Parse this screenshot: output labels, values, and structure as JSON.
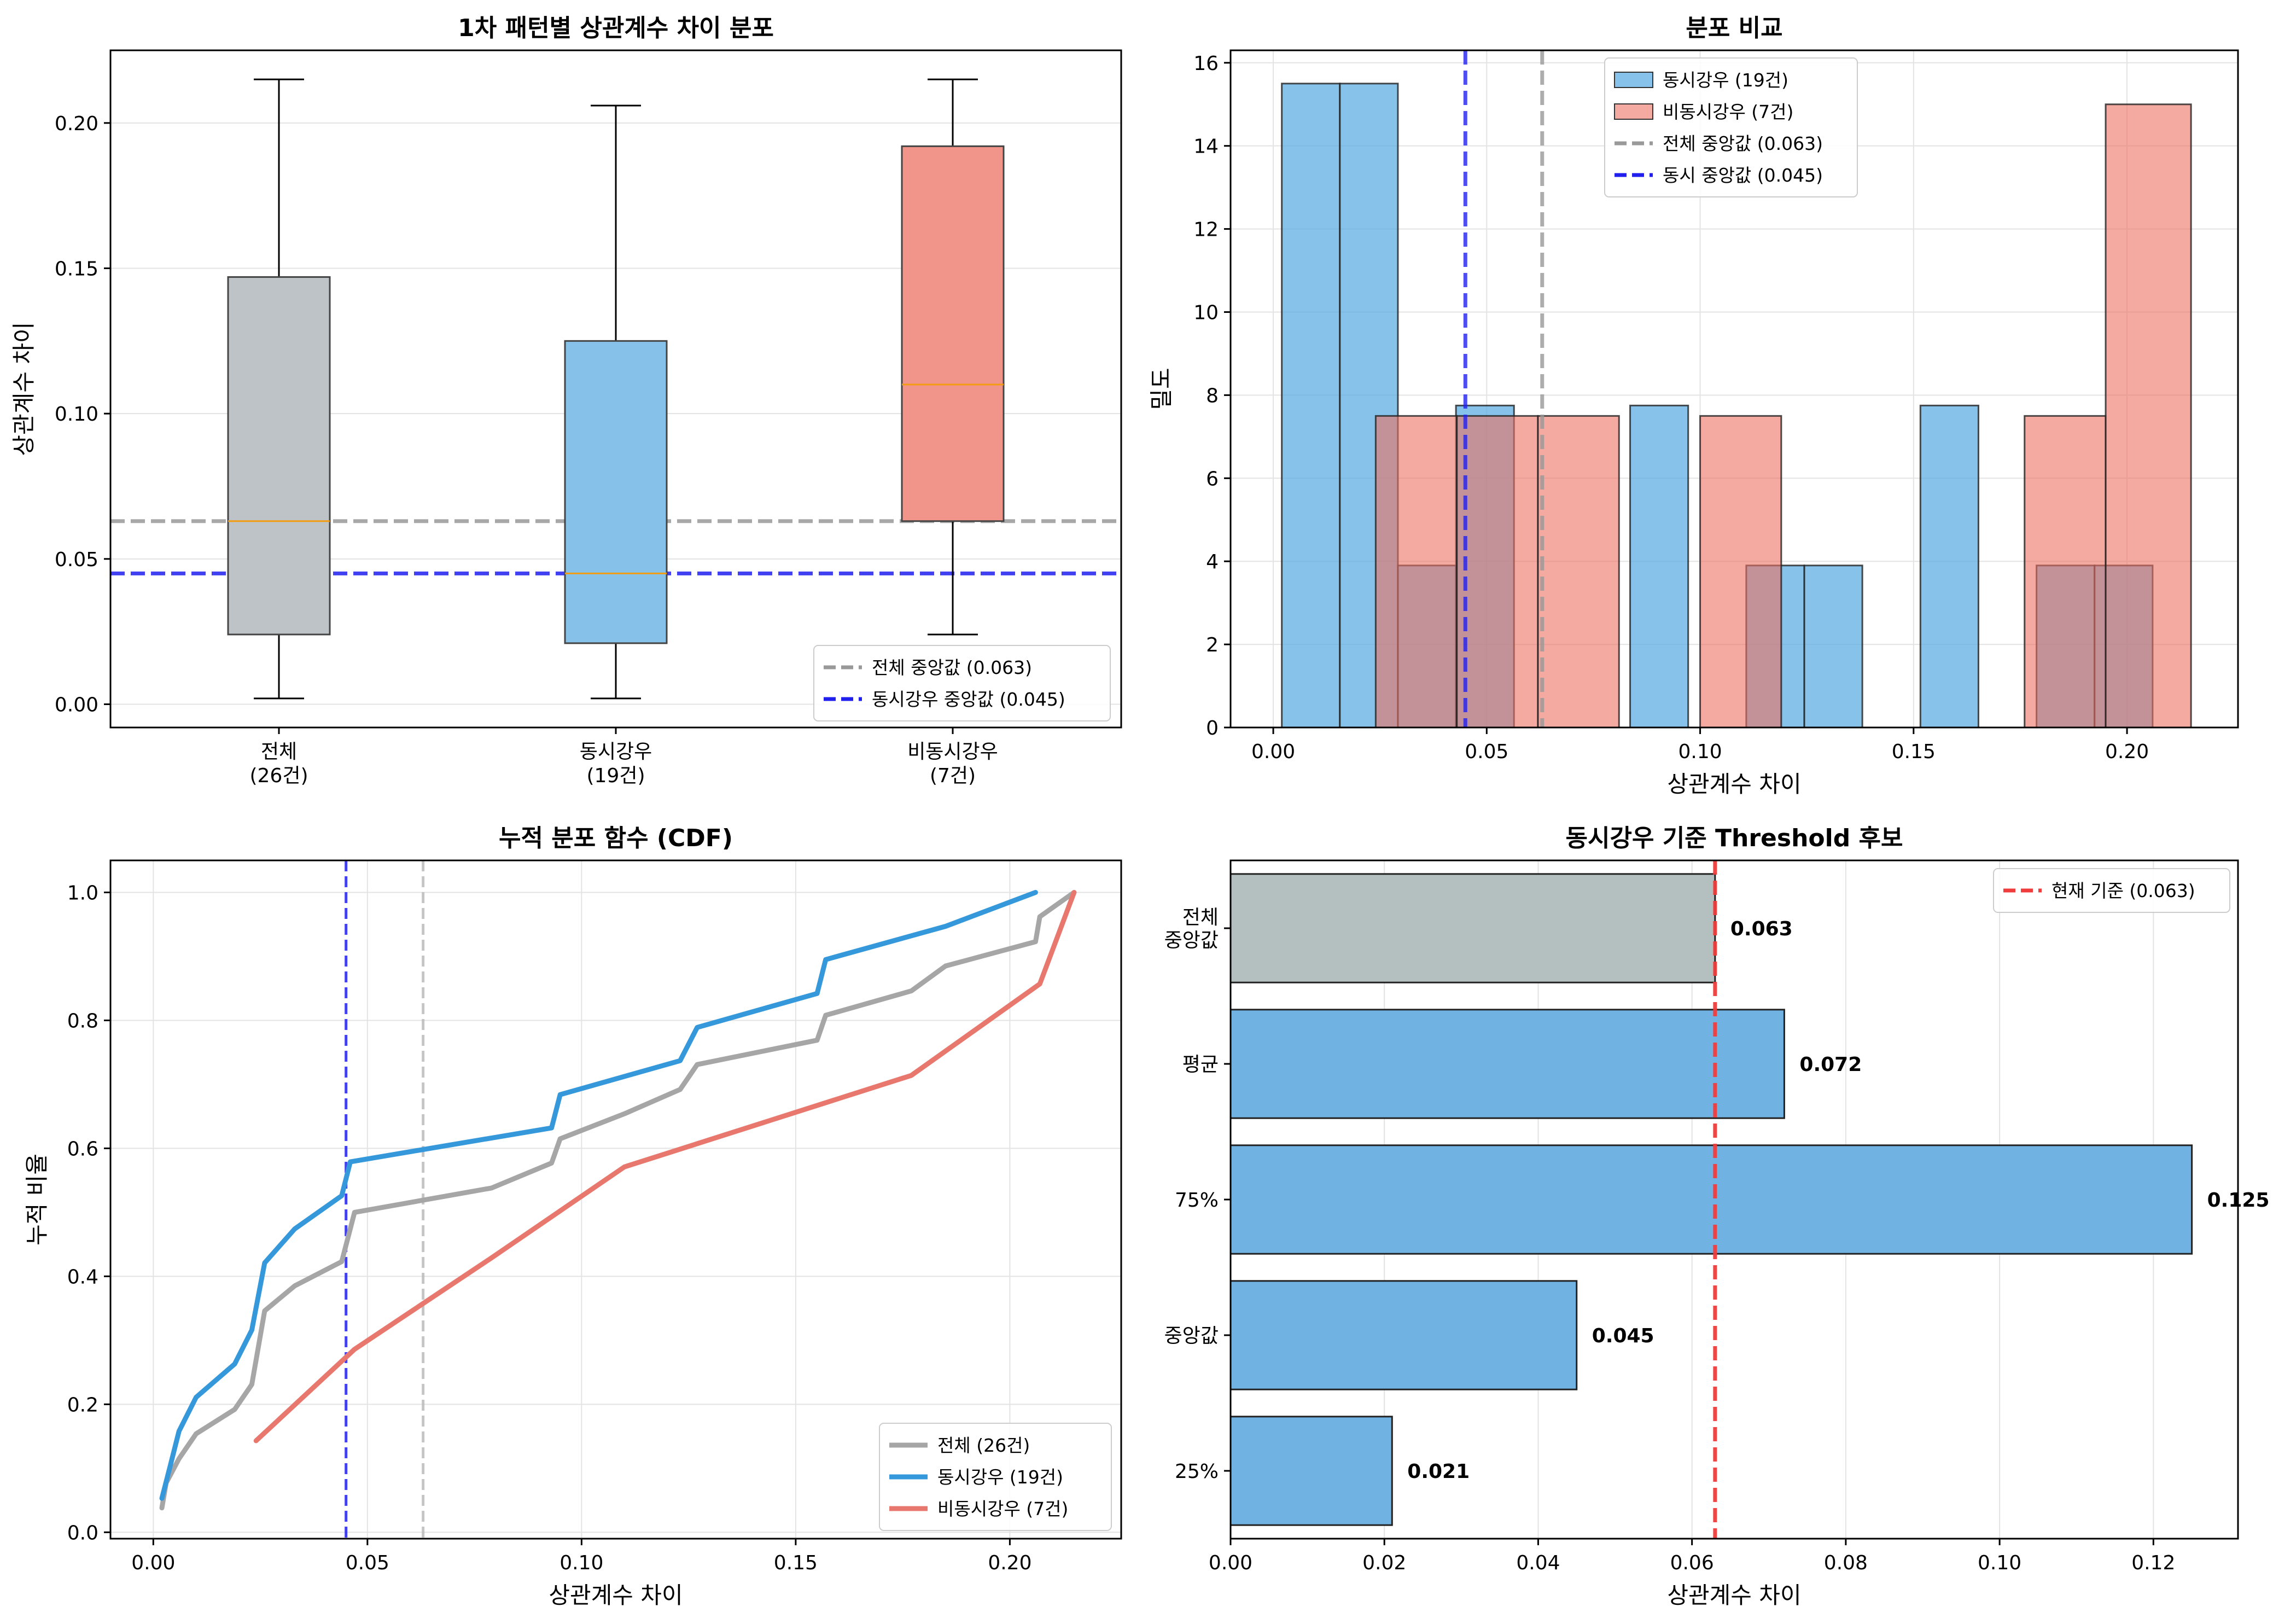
{
  "chart_data": [
    {
      "type": "box",
      "title": "1차 패턴별 상관계수 차이 분포",
      "xlabel": "",
      "ylabel": "상관계수 차이",
      "ylim": [
        -0.008,
        0.225
      ],
      "yticks": [
        0.0,
        0.05,
        0.1,
        0.15,
        0.2
      ],
      "ytick_labels": [
        "0.00",
        "0.05",
        "0.10",
        "0.15",
        "0.20"
      ],
      "grid": true,
      "legend_position": "lower-right",
      "boxes": [
        {
          "label": "전체",
          "sublabel": "(26건)",
          "min": 0.002,
          "q1": 0.024,
          "median": 0.063,
          "q3": 0.147,
          "max": 0.215,
          "color": "#bdc3c7"
        },
        {
          "label": "동시강우",
          "sublabel": "(19건)",
          "min": 0.002,
          "q1": 0.021,
          "median": 0.045,
          "q3": 0.125,
          "max": 0.206,
          "color": "#85c1e9"
        },
        {
          "label": "비동시강우",
          "sublabel": "(7건)",
          "min": 0.024,
          "q1": 0.063,
          "median": 0.11,
          "q3": 0.192,
          "max": 0.215,
          "color": "#f1948a"
        }
      ],
      "reference_lines": [
        {
          "name": "전체 중앙값 (0.063)",
          "value": 0.063,
          "color": "#999999"
        },
        {
          "name": "동시강우 중앙값 (0.045)",
          "value": 0.045,
          "color": "#2020ee"
        }
      ]
    },
    {
      "type": "histogram",
      "title": "분포 비교",
      "xlabel": "상관계수 차이",
      "ylabel": "밀도",
      "xlim": [
        -0.01,
        0.226
      ],
      "ylim": [
        0,
        16.3
      ],
      "xticks": [
        0.0,
        0.05,
        0.1,
        0.15,
        0.2
      ],
      "xtick_labels": [
        "0.00",
        "0.05",
        "0.10",
        "0.15",
        "0.20"
      ],
      "yticks": [
        0,
        2,
        4,
        6,
        8,
        10,
        12,
        14,
        16
      ],
      "ytick_labels": [
        "0",
        "2",
        "4",
        "6",
        "8",
        "10",
        "12",
        "14",
        "16"
      ],
      "grid": true,
      "legend_position": "top-center",
      "series": [
        {
          "name": "동시강우 (19건)",
          "color": "#5dade2",
          "bin_edges": [
            0.002,
            0.0156,
            0.0292,
            0.0428,
            0.0564,
            0.07,
            0.0836,
            0.0972,
            0.1108,
            0.1244,
            0.138,
            0.1516,
            0.1652,
            0.1788,
            0.1924,
            0.206
          ],
          "heights": [
            15.5,
            15.5,
            3.9,
            7.75,
            0,
            0,
            7.75,
            0,
            3.9,
            3.9,
            0,
            7.75,
            0,
            3.9,
            3.9
          ]
        },
        {
          "name": "비동시강우 (7건)",
          "color": "#ec7063",
          "bin_edges": [
            0.024,
            0.043,
            0.062,
            0.081,
            0.1,
            0.119,
            0.138,
            0.157,
            0.176,
            0.195,
            0.215
          ],
          "heights": [
            7.5,
            7.5,
            7.5,
            0,
            7.5,
            0,
            0,
            0,
            7.5,
            15
          ]
        }
      ],
      "reference_lines": [
        {
          "name": "전체 중앙값 (0.063)",
          "value": 0.063,
          "color": "#999999"
        },
        {
          "name": "동시 중앙값 (0.045)",
          "value": 0.045,
          "color": "#2020ee"
        }
      ]
    },
    {
      "type": "line",
      "title": "누적 분포 함수 (CDF)",
      "xlabel": "상관계수 차이",
      "ylabel": "누적 비율",
      "xlim": [
        -0.01,
        0.226
      ],
      "ylim": [
        -0.01,
        1.05
      ],
      "xticks": [
        0.0,
        0.05,
        0.1,
        0.15,
        0.2
      ],
      "xtick_labels": [
        "0.00",
        "0.05",
        "0.10",
        "0.15",
        "0.20"
      ],
      "yticks": [
        0.0,
        0.2,
        0.4,
        0.6,
        0.8,
        1.0
      ],
      "ytick_labels": [
        "0.0",
        "0.2",
        "0.4",
        "0.6",
        "0.8",
        "1.0"
      ],
      "grid": true,
      "legend_position": "lower-right",
      "series": [
        {
          "name": "전체 (26건)",
          "color": "#a6a6a6",
          "x": [
            0.002,
            0.003,
            0.006,
            0.01,
            0.019,
            0.023,
            0.024,
            0.026,
            0.033,
            0.044,
            0.047,
            0.079,
            0.093,
            0.095,
            0.11,
            0.123,
            0.127,
            0.155,
            0.157,
            0.177,
            0.185,
            0.206,
            0.207,
            0.215
          ],
          "y": [
            0.038,
            0.077,
            0.115,
            0.154,
            0.192,
            0.231,
            0.269,
            0.346,
            0.385,
            0.423,
            0.5,
            0.538,
            0.577,
            0.615,
            0.654,
            0.692,
            0.731,
            0.769,
            0.808,
            0.846,
            0.885,
            0.923,
            0.962,
            1.0
          ]
        },
        {
          "name": "동시강우 (19건)",
          "color": "#3498db",
          "x": [
            0.002,
            0.004,
            0.006,
            0.01,
            0.019,
            0.023,
            0.026,
            0.033,
            0.044,
            0.046,
            0.093,
            0.095,
            0.123,
            0.127,
            0.155,
            0.157,
            0.185,
            0.206
          ],
          "y": [
            0.053,
            0.105,
            0.158,
            0.211,
            0.263,
            0.316,
            0.421,
            0.474,
            0.526,
            0.579,
            0.632,
            0.684,
            0.737,
            0.789,
            0.842,
            0.895,
            0.947,
            1.0
          ]
        },
        {
          "name": "비동시강우 (7건)",
          "color": "#e8776d",
          "x": [
            0.024,
            0.047,
            0.079,
            0.11,
            0.177,
            0.207,
            0.215
          ],
          "y": [
            0.143,
            0.286,
            0.429,
            0.571,
            0.714,
            0.857,
            1.0
          ]
        }
      ],
      "reference_lines": [
        {
          "value": 0.045,
          "color": "#2020ee"
        },
        {
          "value": 0.063,
          "color": "#bbbbbb"
        }
      ]
    },
    {
      "type": "bar",
      "orientation": "horizontal",
      "title": "동시강우 기준 Threshold 후보",
      "xlabel": "상관계수 차이",
      "ylabel": "",
      "xlim": [
        0,
        0.131
      ],
      "xticks": [
        0.0,
        0.02,
        0.04,
        0.06,
        0.08,
        0.1,
        0.12
      ],
      "xtick_labels": [
        "0.00",
        "0.02",
        "0.04",
        "0.06",
        "0.08",
        "0.10",
        "0.12"
      ],
      "grid": true,
      "legend_position": "top-right",
      "categories": [
        [
          "전체",
          "중앙값"
        ],
        [
          "평균"
        ],
        [
          "75%"
        ],
        [
          "중앙값"
        ],
        [
          "25%"
        ]
      ],
      "values": [
        0.063,
        0.072,
        0.125,
        0.045,
        0.021
      ],
      "value_labels": [
        "0.063",
        "0.072",
        "0.125",
        "0.045",
        "0.021"
      ],
      "colors": [
        "#b4bfbf",
        "#70b3e3",
        "#70b3e3",
        "#70b3e3",
        "#70b3e3"
      ],
      "reference_lines": [
        {
          "name": "현재 기준 (0.063)",
          "value": 0.063,
          "color": "#f03c3c"
        }
      ]
    }
  ]
}
